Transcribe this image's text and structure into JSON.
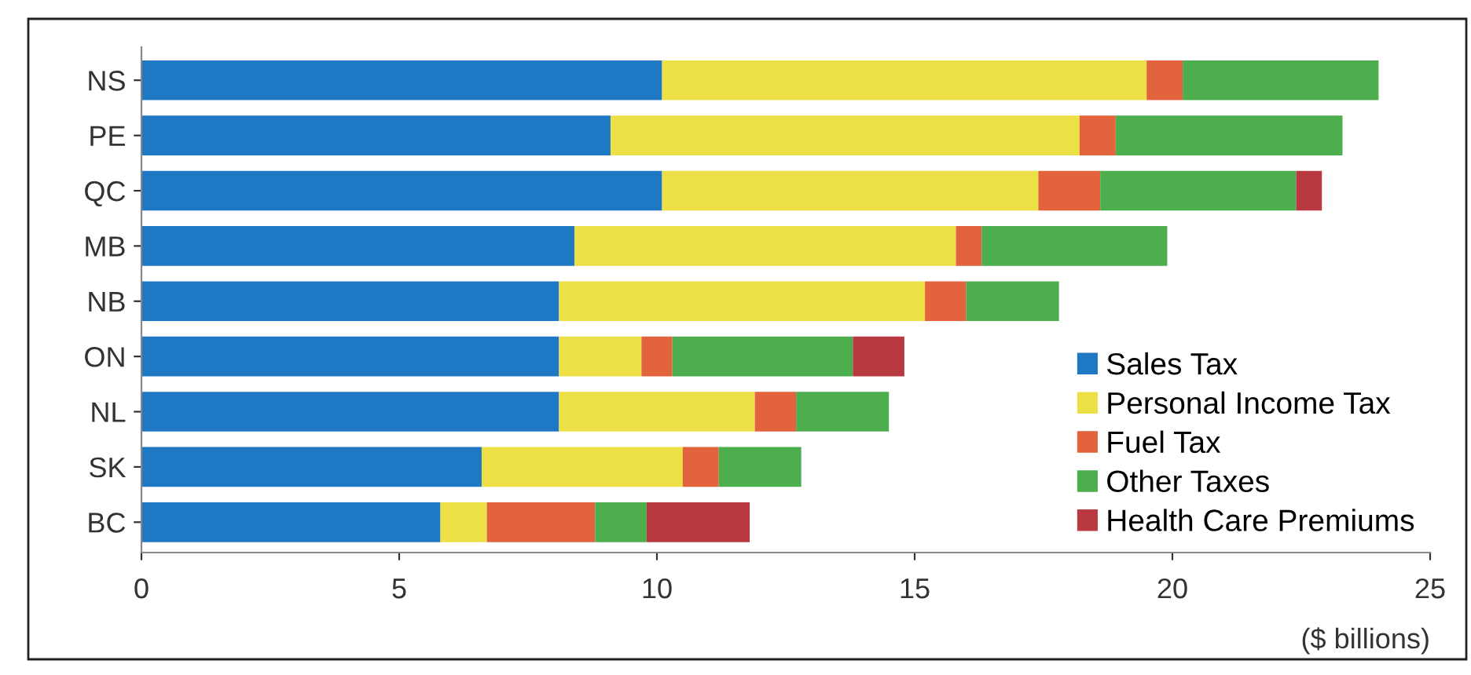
{
  "chart_data": {
    "type": "bar",
    "orientation": "horizontal",
    "stacked": true,
    "xlabel": "($ billions)",
    "categories": [
      "NS",
      "PE",
      "QC",
      "MB",
      "NB",
      "ON",
      "NL",
      "SK",
      "BC"
    ],
    "series": [
      {
        "name": "Sales Tax",
        "color": "#1f78c4",
        "values": [
          10.1,
          9.1,
          10.1,
          8.4,
          8.1,
          8.1,
          8.1,
          6.6,
          5.8
        ]
      },
      {
        "name": "Personal Income Tax",
        "color": "#ece046",
        "values": [
          9.4,
          9.1,
          7.3,
          7.4,
          7.1,
          1.6,
          3.8,
          3.9,
          0.9
        ]
      },
      {
        "name": "Fuel Tax",
        "color": "#e2633c",
        "values": [
          0.7,
          0.7,
          1.2,
          0.5,
          0.8,
          0.6,
          0.8,
          0.7,
          2.1
        ]
      },
      {
        "name": "Other Taxes",
        "color": "#4cae4c",
        "values": [
          3.8,
          4.4,
          3.8,
          3.6,
          1.8,
          3.5,
          1.8,
          1.6,
          1.0
        ]
      },
      {
        "name": "Health Care Premiums",
        "color": "#b83a40",
        "values": [
          null,
          null,
          0.5,
          null,
          null,
          1.0,
          null,
          null,
          2.0
        ]
      }
    ],
    "xlim": [
      0,
      25
    ],
    "xticks": [
      0,
      5,
      10,
      15,
      20,
      25
    ],
    "grid": false,
    "legend": "bottom right"
  }
}
